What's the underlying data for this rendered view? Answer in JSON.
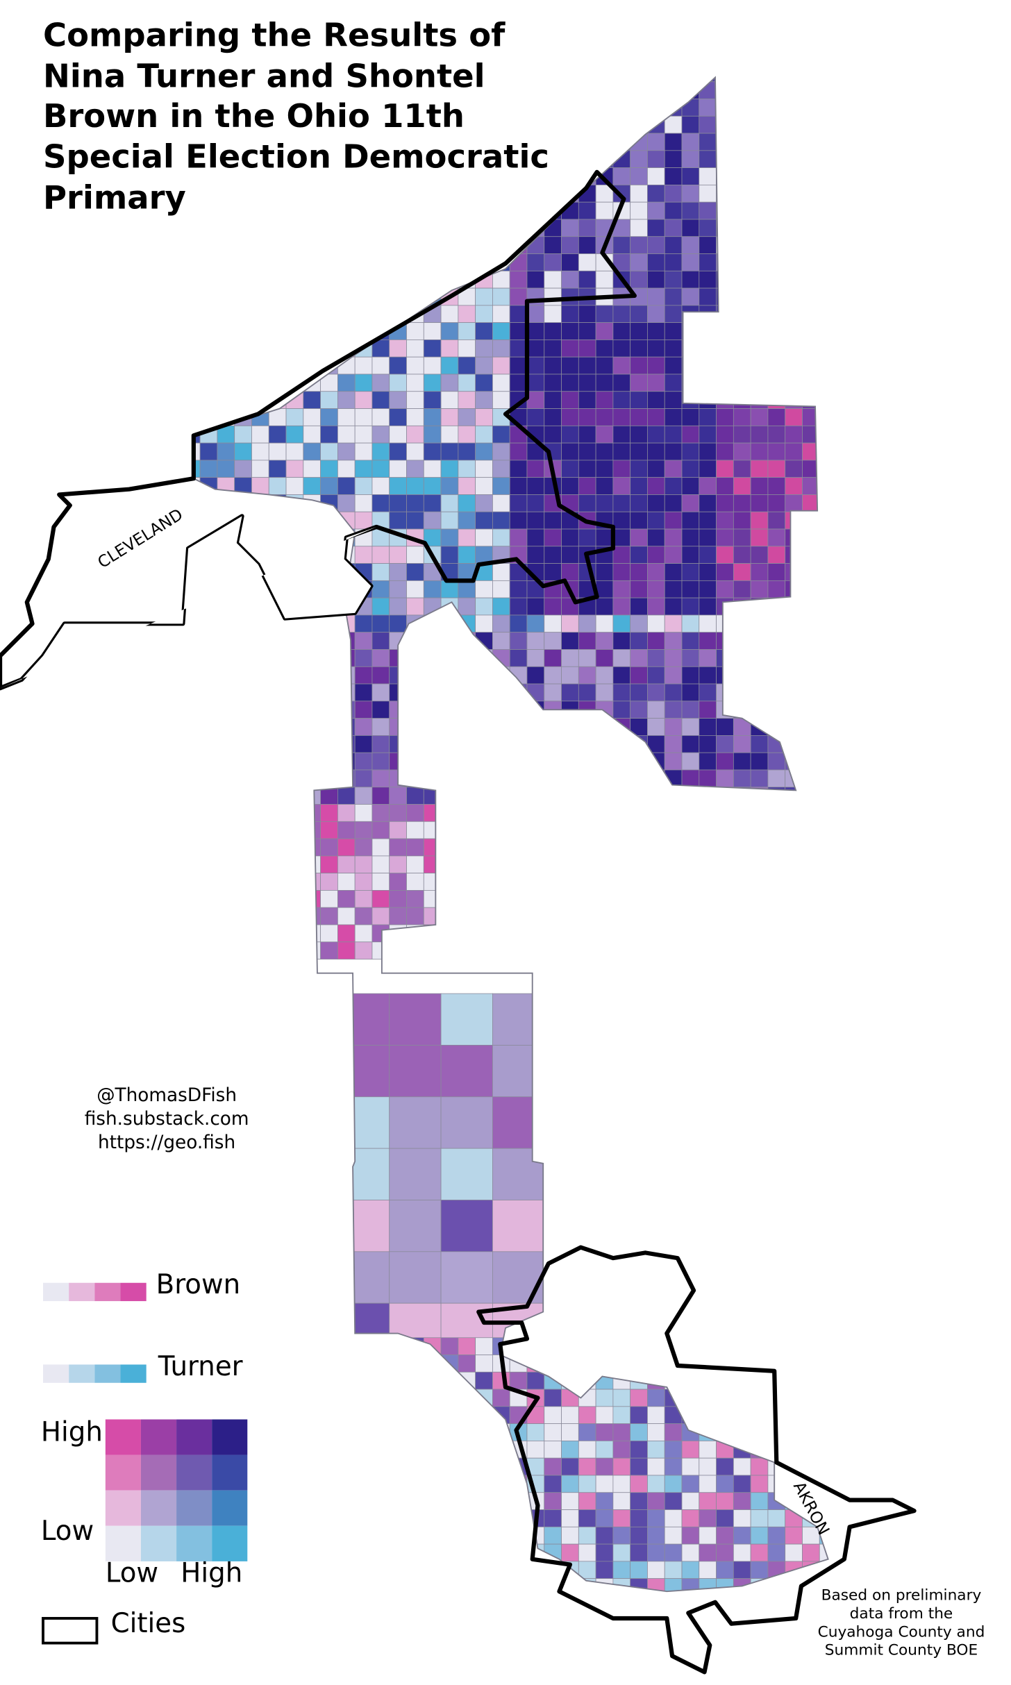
{
  "title": [
    "Comparing the Results of",
    "Nina Turner and Shontel",
    "Brown in the Ohio 11th",
    "Special Election Democratic",
    "Primary"
  ],
  "credits": [
    "@ThomasDFish",
    "fish.substack.com",
    "https://geo.fish"
  ],
  "map_labels": {
    "cleveland": "CLEVELAND",
    "akron": "AKRON"
  },
  "legend": {
    "brown": "Brown",
    "turner": "Turner",
    "high": "High",
    "low": "Low",
    "x_low": "Low",
    "x_high": "High",
    "cities": "Cities"
  },
  "source_note": [
    "Based on preliminary",
    "data from the",
    "Cuyahoga County and",
    "Summit County BOE"
  ]
}
